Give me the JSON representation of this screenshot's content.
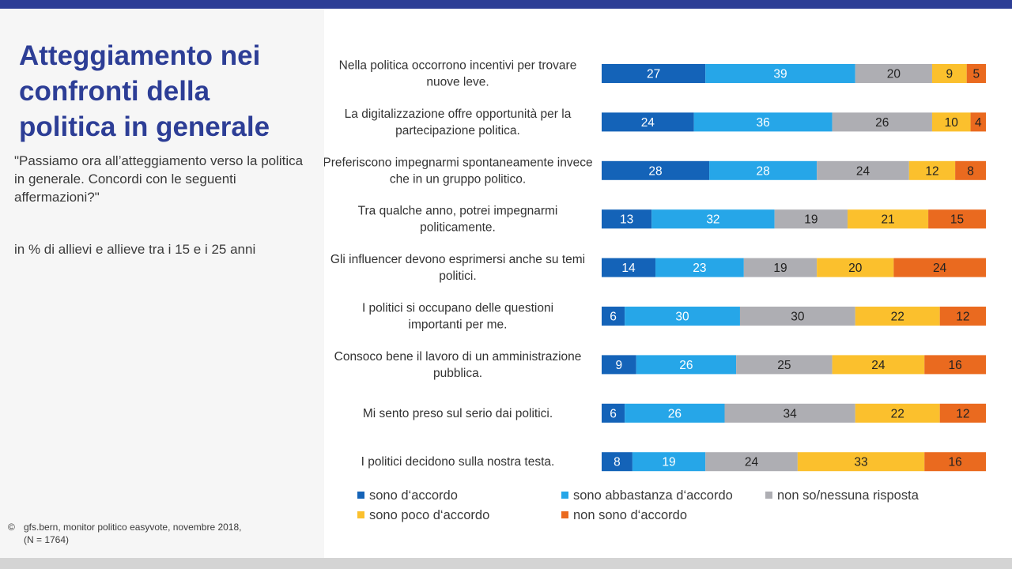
{
  "slide": {
    "title": "Atteggiamento nei confronti della politica in generale",
    "question": "\"Passiamo ora all’atteggiamento verso la politica in generale. Concordi con le seguenti affermazioni?\"",
    "unit_note": "in % di allievi e allieve tra i 15 e i 25 anni",
    "source_symbol": "©",
    "source_line1": "gfs.bern, monitor politico easyvote, novembre 2018,",
    "source_line2": "(N = 1764)"
  },
  "colors": {
    "accent": "#2d3e96",
    "series": [
      "#1463b8",
      "#26a6e8",
      "#aeaeb3",
      "#fbc02d",
      "#ea6a1f"
    ]
  },
  "chart_data": {
    "type": "bar",
    "orientation": "horizontal",
    "stacked": true,
    "unit": "%",
    "xlim": [
      0,
      100
    ],
    "legend_position": "bottom",
    "categories": [
      "Nella politica occorrono incentivi per trovare nuove leve.",
      "La digitalizzazione offre opportunità per la partecipazione politica.",
      "Preferiscono impegnarmi spontaneamente invece che in un gruppo politico.",
      "Tra qualche anno, potrei impegnarmi politicamente.",
      "Gli influencer devono esprimersi anche su temi politici.",
      "I politici si occupano delle questioni importanti per me.",
      "Consoco bene il lavoro di un amministrazione pubblica.",
      "Mi sento preso sul serio dai politici.",
      "I politici decidono sulla nostra testa."
    ],
    "series": [
      {
        "name": "sono d‘accordo",
        "values": [
          27,
          24,
          28,
          13,
          14,
          6,
          9,
          6,
          8
        ]
      },
      {
        "name": "sono abbastanza d‘accordo",
        "values": [
          39,
          36,
          28,
          32,
          23,
          30,
          26,
          26,
          19
        ]
      },
      {
        "name": "non so/nessuna risposta",
        "values": [
          20,
          26,
          24,
          19,
          19,
          30,
          25,
          34,
          24
        ]
      },
      {
        "name": "sono poco d‘accordo",
        "values": [
          9,
          10,
          12,
          21,
          20,
          22,
          24,
          22,
          33
        ]
      },
      {
        "name": "non sono d‘accordo",
        "values": [
          5,
          4,
          8,
          15,
          24,
          12,
          16,
          12,
          16
        ]
      }
    ]
  }
}
